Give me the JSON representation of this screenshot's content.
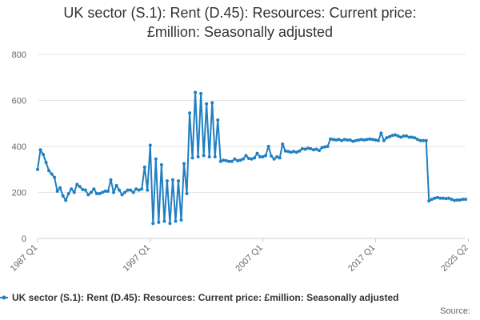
{
  "chart_data": {
    "type": "line",
    "title_lines": [
      "UK sector (S.1): Rent (D.45): Resources: Current price:",
      "£million: Seasonally adjusted"
    ],
    "xlabel": "",
    "ylabel": "",
    "ylim": [
      0,
      800
    ],
    "yticks": [
      "0",
      "200",
      "400",
      "600",
      "800"
    ],
    "x_ticks": [
      "1987 Q1",
      "1997 Q1",
      "2007 Q1",
      "2017 Q1",
      "2025 Q2"
    ],
    "x_start": "1987 Q1",
    "grid": true,
    "legend_position": "bottom",
    "color": "#1f7fc1",
    "series": [
      {
        "name": "UK sector (S.1): Rent (D.45): Resources: Current price: £million: Seasonally adjusted",
        "values": [
          300,
          385,
          365,
          330,
          295,
          280,
          265,
          205,
          220,
          185,
          165,
          195,
          215,
          200,
          235,
          225,
          212,
          210,
          190,
          200,
          215,
          195,
          195,
          200,
          205,
          205,
          255,
          200,
          230,
          210,
          190,
          200,
          210,
          210,
          200,
          215,
          210,
          215,
          310,
          210,
          405,
          65,
          345,
          70,
          320,
          75,
          250,
          65,
          255,
          75,
          250,
          80,
          325,
          195,
          545,
          350,
          635,
          355,
          630,
          360,
          585,
          355,
          590,
          355,
          515,
          335,
          340,
          338,
          335,
          335,
          345,
          338,
          340,
          345,
          360,
          348,
          345,
          350,
          370,
          355,
          355,
          360,
          400,
          358,
          345,
          355,
          350,
          410,
          380,
          378,
          375,
          378,
          375,
          380,
          390,
          388,
          392,
          390,
          385,
          388,
          382,
          395,
          398,
          400,
          432,
          430,
          428,
          430,
          425,
          430,
          428,
          428,
          422,
          425,
          428,
          430,
          428,
          430,
          432,
          430,
          428,
          425,
          458,
          425,
          438,
          442,
          448,
          450,
          445,
          440,
          445,
          445,
          440,
          440,
          437,
          430,
          425,
          425,
          425,
          163,
          170,
          175,
          178,
          175,
          175,
          173,
          175,
          170,
          165,
          167,
          167,
          170,
          170
        ]
      }
    ]
  },
  "source_label": "Source:"
}
